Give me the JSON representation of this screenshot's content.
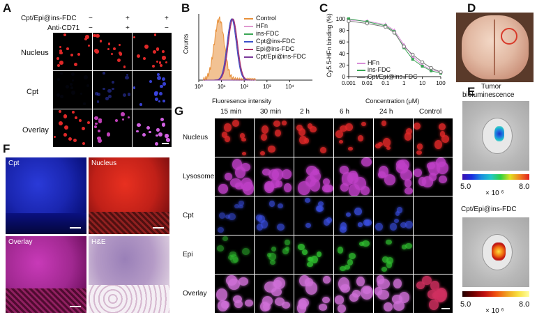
{
  "panel_labels": {
    "a": "A",
    "b": "B",
    "c": "C",
    "d": "D",
    "e": "E",
    "f": "F",
    "g": "G"
  },
  "panel_a": {
    "header_rows": [
      "Cpt/Epi@ins-FDC",
      "Anti-CD71"
    ],
    "conditions": [
      [
        "−",
        "−"
      ],
      [
        "+",
        "+"
      ],
      [
        "+",
        "−"
      ]
    ],
    "row_labels": [
      "Nucleus",
      "Cpt",
      "Overlay"
    ]
  },
  "chart_data": [
    {
      "type": "area",
      "panel": "B",
      "xlabel": "Fluoresence intensity",
      "ylabel": "Counts",
      "x_scale": "log",
      "xlim": [
        1,
        100000
      ],
      "x_ticks": [
        "10⁰",
        "10¹",
        "10²",
        "10³",
        "10⁴"
      ],
      "legend_position": "top-right",
      "series": [
        {
          "name": "Control",
          "color": "#e8903a",
          "peak_x": 8
        },
        {
          "name": "HFn",
          "color": "#e09ad0",
          "peak_x": 30
        },
        {
          "name": "ins-FDC",
          "color": "#3aa655",
          "peak_x": 30
        },
        {
          "name": "Cpt@ins-FDC",
          "color": "#3a4fc9",
          "peak_x": 28
        },
        {
          "name": "Epi@ins-FDC",
          "color": "#b0306a",
          "peak_x": 32
        },
        {
          "name": "Cpt/Epi@ins-FDC",
          "color": "#7a3a9a",
          "peak_x": 30
        }
      ]
    },
    {
      "type": "scatter",
      "panel": "C",
      "xlabel": "Concentration (μM)",
      "ylabel": "Cy5.5-HFn binding (%)",
      "x_scale": "log",
      "x_ticks": [
        "0.001",
        "0.01",
        "0.1",
        "1",
        "10",
        "100"
      ],
      "ylim": [
        0,
        100
      ],
      "y_ticks": [
        "0",
        "20",
        "40",
        "60",
        "80",
        "100"
      ],
      "legend_position": "bottom-left",
      "x": [
        0.001,
        0.01,
        0.1,
        0.3,
        1,
        3,
        10,
        30,
        100
      ],
      "series": [
        {
          "name": "HFn",
          "color": "#d890d8",
          "marker": "triangle",
          "values": [
            98,
            96,
            90,
            80,
            55,
            35,
            20,
            12,
            8
          ]
        },
        {
          "name": "ins-FDC",
          "color": "#3aa655",
          "marker": "square",
          "values": [
            100,
            95,
            88,
            78,
            50,
            30,
            18,
            10,
            6
          ]
        },
        {
          "name": "Cpt/Epi@ins-FDC",
          "color": "#777777",
          "marker": "circle",
          "values": [
            96,
            92,
            86,
            76,
            52,
            38,
            25,
            15,
            8
          ]
        }
      ]
    }
  ],
  "panel_e": {
    "title1": "Tumor",
    "title2": "bioluminescence",
    "scale1_min": "5.0",
    "scale1_max": "8.0",
    "scale1_unit": "× 10 ⁶",
    "title3": "Cpt/Epi@ins-FDC",
    "scale2_min": "5.0",
    "scale2_max": "8.0",
    "scale2_unit": "× 10 ⁶"
  },
  "panel_f": {
    "tiles": [
      "Cpt",
      "Nucleus",
      "Overlay",
      "H&E"
    ]
  },
  "panel_g": {
    "columns": [
      "15 min",
      "30 min",
      "2 h",
      "6 h",
      "24 h",
      "Control"
    ],
    "rows": [
      "Nucleus",
      "Lysosome",
      "Cpt",
      "Epi",
      "Overlay"
    ]
  }
}
